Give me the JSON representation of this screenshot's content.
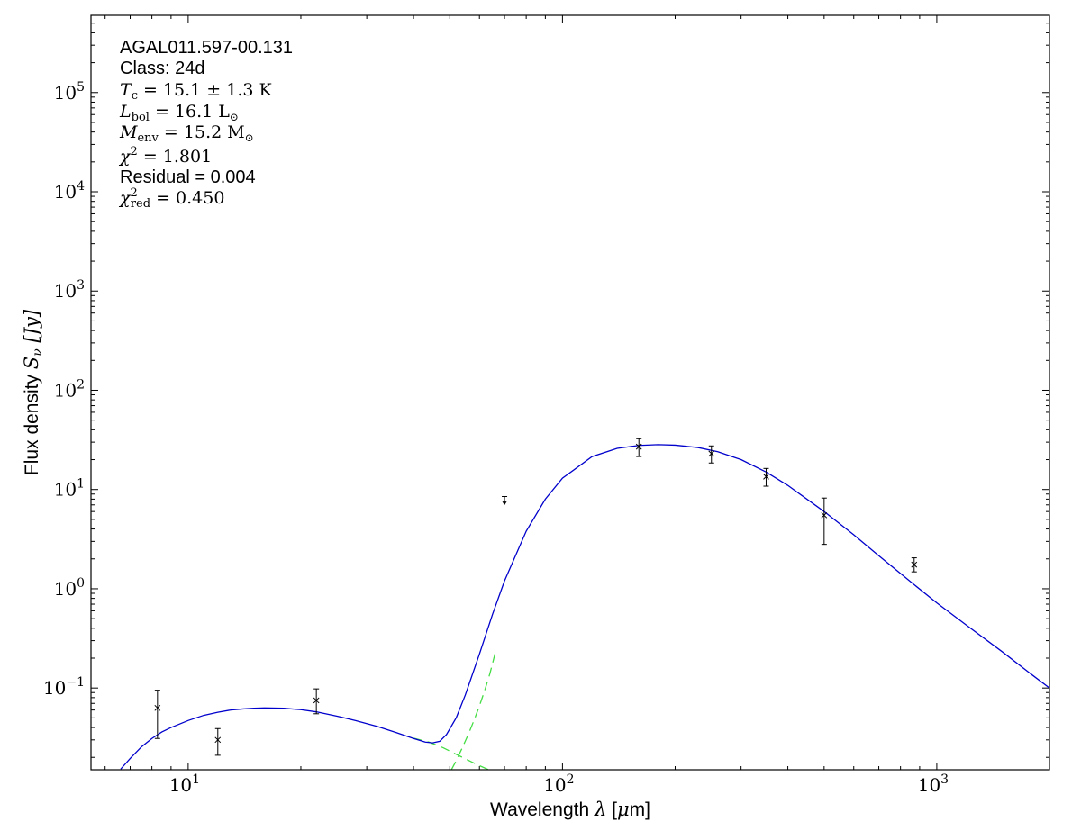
{
  "chart_data": {
    "type": "scatter",
    "title": "",
    "xlabel": "Wavelength λ [μm]",
    "ylabel": "Flux density S_ν [Jy]",
    "xlabel_parts": {
      "prefix": "Wavelength ",
      "symbol": "λ",
      "suffix": " [",
      "mu": "μ",
      "unit": "m]"
    },
    "ylabel_parts": {
      "prefix": "Flux density ",
      "symbol": "S",
      "sub": "ν",
      "suffix": " [Jy]"
    },
    "xscale": "log",
    "yscale": "log",
    "xlim": [
      5.5,
      2000
    ],
    "ylim": [
      0.015,
      600000
    ],
    "grid": false,
    "x_tick_labels": [
      {
        "value": 10,
        "base": "10",
        "exp": "1"
      },
      {
        "value": 100,
        "base": "10",
        "exp": "2"
      },
      {
        "value": 1000,
        "base": "10",
        "exp": "3"
      }
    ],
    "y_tick_labels": [
      {
        "value": 0.1,
        "base": "10",
        "exp": "−1"
      },
      {
        "value": 1,
        "base": "10",
        "exp": "0"
      },
      {
        "value": 10,
        "base": "10",
        "exp": "1"
      },
      {
        "value": 100,
        "base": "10",
        "exp": "2"
      },
      {
        "value": 1000,
        "base": "10",
        "exp": "3"
      },
      {
        "value": 10000,
        "base": "10",
        "exp": "4"
      },
      {
        "value": 100000,
        "base": "10",
        "exp": "5"
      }
    ],
    "annotations": {
      "source": "AGAL011.597-00.131",
      "class_line": "Class: 24d",
      "tc": {
        "sym": "T",
        "sub": "c",
        "rest": " = 15.1 ± 1.3 K"
      },
      "lbol": {
        "sym": "L",
        "sub": "bol",
        "rest": " = 16.1 L",
        "sunsub": "⊙"
      },
      "menv": {
        "sym": "M",
        "sub": "env",
        "rest": " = 15.2 M",
        "sunsub": "⊙"
      },
      "chi2": {
        "sym": "χ",
        "sup": "2",
        "rest": " = 1.801"
      },
      "residual_line": "Residual = 0.004",
      "chi2red": {
        "sym": "χ",
        "sup": "2",
        "sub": "red",
        "rest": " = 0.450"
      }
    },
    "points": [
      {
        "x": 8.28,
        "y": 0.063,
        "yerr_low": 0.031,
        "yerr_high": 0.095
      },
      {
        "x": 12.0,
        "y": 0.03,
        "yerr_low": 0.021,
        "yerr_high": 0.039
      },
      {
        "x": 22.0,
        "y": 0.075,
        "yerr_low": 0.055,
        "yerr_high": 0.098
      },
      {
        "x": 160.0,
        "y": 27.0,
        "yerr_low": 21.5,
        "yerr_high": 32.5
      },
      {
        "x": 250.0,
        "y": 23.0,
        "yerr_low": 18.5,
        "yerr_high": 27.5
      },
      {
        "x": 350.0,
        "y": 13.5,
        "yerr_low": 10.8,
        "yerr_high": 16.3
      },
      {
        "x": 500.0,
        "y": 5.5,
        "yerr_low": 2.8,
        "yerr_high": 8.2
      },
      {
        "x": 870.0,
        "y": 1.75,
        "yerr_low": 1.48,
        "yerr_high": 2.05
      }
    ],
    "upper_limits": [
      {
        "x": 70.0,
        "y": 8.5,
        "y_low": 7.1
      }
    ],
    "fit_total": {
      "color": "#0000cc",
      "x": [
        6.6,
        7.0,
        7.5,
        8.0,
        8.5,
        9.0,
        10.0,
        11.0,
        12.0,
        13.0,
        14.0,
        15.0,
        16.0,
        18.0,
        20.0,
        22.0,
        25.0,
        28.0,
        32.0,
        36.0,
        40.0,
        43.0,
        45.0,
        47.0,
        49.0,
        52.0,
        55.0,
        60.0,
        65.0,
        70.0,
        80.0,
        90.0,
        100.0,
        120.0,
        140.0,
        160.0,
        180.0,
        200.0,
        230.0,
        260.0,
        300.0,
        350.0,
        400.0,
        500.0,
        600.0,
        700.0,
        870.0,
        1000.0,
        1200.0,
        1500.0,
        1800.0,
        2000.0
      ],
      "y": [
        0.0152,
        0.0195,
        0.0255,
        0.031,
        0.036,
        0.04,
        0.047,
        0.053,
        0.057,
        0.06,
        0.0615,
        0.0625,
        0.063,
        0.0625,
        0.0605,
        0.0575,
        0.052,
        0.047,
        0.041,
        0.0355,
        0.031,
        0.0285,
        0.028,
        0.029,
        0.034,
        0.05,
        0.085,
        0.22,
        0.55,
        1.2,
        3.8,
        8.0,
        13.0,
        21.5,
        26.0,
        27.8,
        28.3,
        28.0,
        26.5,
        24.0,
        20.0,
        15.0,
        11.0,
        6.0,
        3.5,
        2.15,
        1.1,
        0.72,
        0.43,
        0.23,
        0.135,
        0.1
      ]
    },
    "fit_components": {
      "color": "#44dd44",
      "warm_tail": {
        "x": [
          40.0,
          44.0,
          48.0,
          52.0,
          56.0,
          60.0,
          64.0
        ],
        "y": [
          0.0312,
          0.0285,
          0.025,
          0.0215,
          0.0187,
          0.0165,
          0.0148
        ]
      },
      "cold_rise": {
        "x": [
          50.5,
          52.0,
          54.0,
          56.0,
          58.0,
          60.0,
          62.0,
          64.0,
          66.0
        ],
        "y": [
          0.015,
          0.0185,
          0.025,
          0.034,
          0.047,
          0.066,
          0.095,
          0.14,
          0.22
        ]
      }
    }
  }
}
